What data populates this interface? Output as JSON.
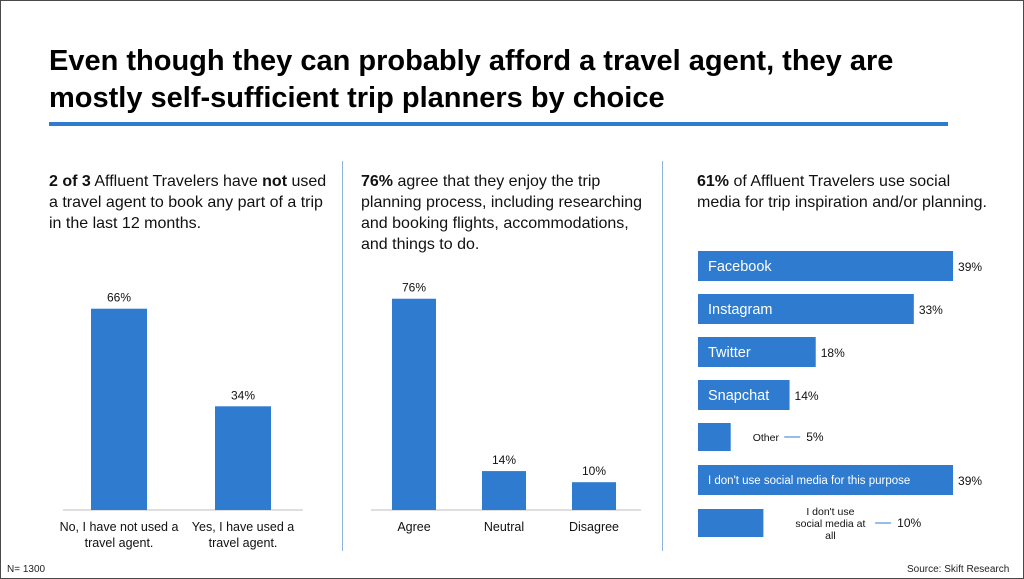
{
  "title": "Even though they can probably afford a travel agent, they are mostly self-sufficient trip planners by choice",
  "colors": {
    "bar": "#2e7bd0",
    "accent_rule": "#2e7bd0",
    "divider": "#8fb4de"
  },
  "panel1": {
    "heading_bold1": "2 of 3",
    "heading_text1": " Affluent Travelers have ",
    "heading_bold2": "not",
    "heading_text2": " used a travel agent to book any part of a trip in the last 12 months."
  },
  "panel2": {
    "heading_bold": "76%",
    "heading_text": " agree that they enjoy the trip planning process, including researching and booking flights, accommodations, and things to do."
  },
  "panel3": {
    "heading_bold": "61%",
    "heading_text": " of Affluent Travelers use social media for trip inspiration and/or planning."
  },
  "footer": {
    "sample": "N= 1300",
    "source": "Source: Skift Research"
  },
  "chart_data": [
    {
      "type": "bar",
      "categories": [
        "No, I have not used a travel agent.",
        "Yes, I have used a travel agent."
      ],
      "values": [
        66,
        34
      ],
      "value_labels": [
        "66%",
        "34%"
      ],
      "unit": "%",
      "title": "",
      "xlabel": "",
      "ylabel": ""
    },
    {
      "type": "bar",
      "categories": [
        "Agree",
        "Neutral",
        "Disagree"
      ],
      "values": [
        76,
        14,
        10
      ],
      "value_labels": [
        "76%",
        "14%",
        "10%"
      ],
      "unit": "%",
      "title": "",
      "xlabel": "",
      "ylabel": ""
    },
    {
      "type": "bar",
      "orientation": "horizontal",
      "categories": [
        "Facebook",
        "Instagram",
        "Twitter",
        "Snapchat",
        "Other",
        "I don't use social media for this purpose",
        "I don't use social media at all"
      ],
      "values": [
        39,
        33,
        18,
        14,
        5,
        39,
        10
      ],
      "value_labels": [
        "39%",
        "33%",
        "18%",
        "14%",
        "5%",
        "39%",
        "10%"
      ],
      "unit": "%",
      "title": "",
      "xlabel": "",
      "ylabel": ""
    }
  ]
}
